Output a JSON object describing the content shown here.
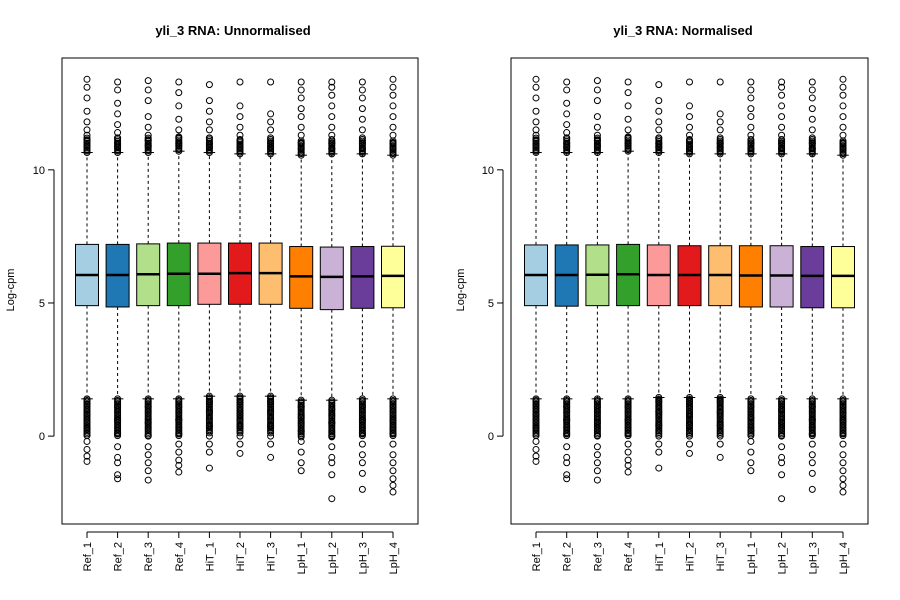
{
  "chart_data": [
    {
      "type": "box",
      "title": "yli_3 RNA: Unnormalised",
      "ylabel": "Log-cpm",
      "ylim": [
        -3.3,
        14.2
      ],
      "yticks": [
        0,
        5,
        10
      ],
      "categories": [
        "Ref_1",
        "Ref_2",
        "Ref_3",
        "Ref_4",
        "HiT_1",
        "HiT_2",
        "HiT_3",
        "LpH_1",
        "LpH_2",
        "LpH_3",
        "LpH_4"
      ],
      "colors": [
        "#a6cee3",
        "#1f78b4",
        "#b2df8a",
        "#33a02c",
        "#fb9a99",
        "#e31a1c",
        "#fdbf6f",
        "#ff7f00",
        "#cab2d6",
        "#6a3d9a",
        "#ffff99"
      ],
      "boxes": [
        {
          "q1": 4.9,
          "median": 6.05,
          "q3": 7.2,
          "whisker_low": 1.4,
          "whisker_high": 10.65,
          "outliers_high": [
            13.4,
            13.1,
            12.7,
            12.2,
            11.8,
            11.5,
            11.3,
            11.1,
            10.9
          ],
          "outliers_low": [
            1.2,
            0.8,
            0.3,
            -0.2,
            -0.5,
            -0.75,
            -0.95
          ]
        },
        {
          "q1": 4.85,
          "median": 6.05,
          "q3": 7.2,
          "whisker_low": 1.4,
          "whisker_high": 10.65,
          "outliers_high": [
            13.3,
            13.0,
            12.5,
            12.1,
            11.7,
            11.4,
            11.2,
            11.0,
            10.85
          ],
          "outliers_low": [
            1.1,
            0.6,
            0.1,
            -0.4,
            -0.8,
            -1.0,
            -1.45,
            -1.6
          ]
        },
        {
          "q1": 4.9,
          "median": 6.08,
          "q3": 7.22,
          "whisker_low": 1.4,
          "whisker_high": 10.65,
          "outliers_high": [
            13.35,
            13.0,
            12.6,
            12.0,
            11.6,
            11.3,
            11.1,
            10.9
          ],
          "outliers_low": [
            1.1,
            0.5,
            0.0,
            -0.4,
            -0.7,
            -1.0,
            -1.3,
            -1.65
          ]
        },
        {
          "q1": 4.9,
          "median": 6.1,
          "q3": 7.25,
          "whisker_low": 1.4,
          "whisker_high": 10.7,
          "outliers_high": [
            13.3,
            12.9,
            12.4,
            11.9,
            11.5,
            11.2,
            11.0,
            10.9
          ],
          "outliers_low": [
            1.1,
            0.6,
            0.1,
            -0.3,
            -0.6,
            -0.9,
            -1.1,
            -1.35
          ]
        },
        {
          "q1": 4.95,
          "median": 6.1,
          "q3": 7.25,
          "whisker_low": 1.5,
          "whisker_high": 10.65,
          "outliers_high": [
            13.2,
            12.6,
            12.2,
            11.8,
            11.5,
            11.2,
            11.0,
            10.85
          ],
          "outliers_low": [
            1.3,
            0.9,
            0.4,
            0.0,
            -0.3,
            -0.6,
            -1.2
          ]
        },
        {
          "q1": 4.95,
          "median": 6.12,
          "q3": 7.25,
          "whisker_low": 1.5,
          "whisker_high": 10.6,
          "outliers_high": [
            13.3,
            12.4,
            12.0,
            11.6,
            11.3,
            11.1,
            10.85
          ],
          "outliers_low": [
            1.3,
            0.8,
            0.4,
            0.0,
            -0.3,
            -0.65
          ]
        },
        {
          "q1": 4.95,
          "median": 6.12,
          "q3": 7.25,
          "whisker_low": 1.5,
          "whisker_high": 10.6,
          "outliers_high": [
            13.3,
            12.1,
            11.8,
            11.5,
            11.2,
            11.0,
            10.85
          ],
          "outliers_low": [
            1.3,
            0.9,
            0.4,
            0.0,
            -0.3,
            -0.8
          ]
        },
        {
          "q1": 4.8,
          "median": 6.0,
          "q3": 7.12,
          "whisker_low": 1.35,
          "whisker_high": 10.55,
          "outliers_high": [
            13.3,
            13.0,
            12.7,
            12.3,
            12.0,
            11.6,
            11.3,
            11.0,
            10.8
          ],
          "outliers_low": [
            1.1,
            0.7,
            0.2,
            -0.2,
            -0.6,
            -1.0,
            -1.3
          ]
        },
        {
          "q1": 4.75,
          "median": 5.98,
          "q3": 7.1,
          "whisker_low": 1.35,
          "whisker_high": 10.6,
          "outliers_high": [
            13.3,
            13.1,
            12.8,
            12.4,
            12.0,
            11.6,
            11.3,
            11.0,
            10.8
          ],
          "outliers_low": [
            1.0,
            0.5,
            0.0,
            -0.4,
            -0.8,
            -1.0,
            -1.45,
            -2.35
          ]
        },
        {
          "q1": 4.8,
          "median": 6.0,
          "q3": 7.12,
          "whisker_low": 1.4,
          "whisker_high": 10.6,
          "outliers_high": [
            13.3,
            13.0,
            12.7,
            12.3,
            11.9,
            11.5,
            11.2,
            11.0,
            10.8
          ],
          "outliers_low": [
            1.1,
            0.6,
            0.1,
            -0.3,
            -0.7,
            -1.0,
            -1.4,
            -2.0
          ]
        },
        {
          "q1": 4.82,
          "median": 6.02,
          "q3": 7.13,
          "whisker_low": 1.4,
          "whisker_high": 10.55,
          "outliers_high": [
            13.4,
            13.1,
            12.8,
            12.4,
            12.0,
            11.6,
            11.3,
            11.0,
            10.8
          ],
          "outliers_low": [
            1.1,
            0.6,
            0.1,
            -0.3,
            -0.7,
            -1.0,
            -1.3,
            -1.6,
            -1.85,
            -2.1
          ]
        }
      ]
    },
    {
      "type": "box",
      "title": "yli_3 RNA: Normalised",
      "ylabel": "Log-cpm",
      "ylim": [
        -3.3,
        14.2
      ],
      "yticks": [
        0,
        5,
        10
      ],
      "categories": [
        "Ref_1",
        "Ref_2",
        "Ref_3",
        "Ref_4",
        "HiT_1",
        "HiT_2",
        "HiT_3",
        "LpH_1",
        "LpH_2",
        "LpH_3",
        "LpH_4"
      ],
      "colors": [
        "#a6cee3",
        "#1f78b4",
        "#b2df8a",
        "#33a02c",
        "#fb9a99",
        "#e31a1c",
        "#fdbf6f",
        "#ff7f00",
        "#cab2d6",
        "#6a3d9a",
        "#ffff99"
      ],
      "boxes": [
        {
          "q1": 4.9,
          "median": 6.05,
          "q3": 7.18,
          "whisker_low": 1.4,
          "whisker_high": 10.65,
          "outliers_high": [
            13.4,
            13.1,
            12.7,
            12.2,
            11.8,
            11.5,
            11.3,
            11.1,
            10.9
          ],
          "outliers_low": [
            1.2,
            0.8,
            0.3,
            -0.2,
            -0.5,
            -0.75,
            -0.95
          ]
        },
        {
          "q1": 4.88,
          "median": 6.05,
          "q3": 7.18,
          "whisker_low": 1.4,
          "whisker_high": 10.65,
          "outliers_high": [
            13.3,
            13.0,
            12.5,
            12.1,
            11.7,
            11.4,
            11.2,
            11.0,
            10.85
          ],
          "outliers_low": [
            1.1,
            0.6,
            0.1,
            -0.4,
            -0.8,
            -1.0,
            -1.45,
            -1.6
          ]
        },
        {
          "q1": 4.9,
          "median": 6.06,
          "q3": 7.18,
          "whisker_low": 1.4,
          "whisker_high": 10.65,
          "outliers_high": [
            13.35,
            13.0,
            12.6,
            12.0,
            11.6,
            11.3,
            11.1,
            10.9
          ],
          "outliers_low": [
            1.1,
            0.5,
            0.0,
            -0.4,
            -0.7,
            -1.0,
            -1.3,
            -1.65
          ]
        },
        {
          "q1": 4.9,
          "median": 6.08,
          "q3": 7.2,
          "whisker_low": 1.4,
          "whisker_high": 10.7,
          "outliers_high": [
            13.3,
            12.9,
            12.4,
            11.9,
            11.5,
            11.2,
            11.0,
            10.9
          ],
          "outliers_low": [
            1.1,
            0.6,
            0.1,
            -0.3,
            -0.6,
            -0.9,
            -1.1,
            -1.35
          ]
        },
        {
          "q1": 4.9,
          "median": 6.05,
          "q3": 7.18,
          "whisker_low": 1.45,
          "whisker_high": 10.65,
          "outliers_high": [
            13.2,
            12.6,
            12.2,
            11.8,
            11.5,
            11.2,
            11.0,
            10.85
          ],
          "outliers_low": [
            1.3,
            0.9,
            0.4,
            0.0,
            -0.3,
            -0.6,
            -1.2
          ]
        },
        {
          "q1": 4.9,
          "median": 6.05,
          "q3": 7.15,
          "whisker_low": 1.45,
          "whisker_high": 10.6,
          "outliers_high": [
            13.3,
            12.4,
            12.0,
            11.6,
            11.3,
            11.1,
            10.85
          ],
          "outliers_low": [
            1.3,
            0.8,
            0.4,
            0.0,
            -0.3,
            -0.65
          ]
        },
        {
          "q1": 4.9,
          "median": 6.05,
          "q3": 7.15,
          "whisker_low": 1.45,
          "whisker_high": 10.6,
          "outliers_high": [
            13.3,
            12.1,
            11.8,
            11.5,
            11.2,
            11.0,
            10.85
          ],
          "outliers_low": [
            1.3,
            0.9,
            0.4,
            0.0,
            -0.3,
            -0.8
          ]
        },
        {
          "q1": 4.85,
          "median": 6.03,
          "q3": 7.15,
          "whisker_low": 1.4,
          "whisker_high": 10.6,
          "outliers_high": [
            13.3,
            13.0,
            12.7,
            12.3,
            12.0,
            11.6,
            11.3,
            11.0,
            10.8
          ],
          "outliers_low": [
            1.1,
            0.7,
            0.2,
            -0.2,
            -0.6,
            -1.0,
            -1.3
          ]
        },
        {
          "q1": 4.85,
          "median": 6.03,
          "q3": 7.15,
          "whisker_low": 1.4,
          "whisker_high": 10.6,
          "outliers_high": [
            13.3,
            13.1,
            12.8,
            12.4,
            12.0,
            11.6,
            11.3,
            11.0,
            10.8
          ],
          "outliers_low": [
            1.0,
            0.5,
            0.0,
            -0.4,
            -0.8,
            -1.0,
            -1.45,
            -2.35
          ]
        },
        {
          "q1": 4.82,
          "median": 6.02,
          "q3": 7.12,
          "whisker_low": 1.4,
          "whisker_high": 10.6,
          "outliers_high": [
            13.3,
            13.0,
            12.7,
            12.3,
            11.9,
            11.5,
            11.2,
            11.0,
            10.8
          ],
          "outliers_low": [
            1.1,
            0.6,
            0.1,
            -0.3,
            -0.7,
            -1.0,
            -1.4,
            -2.0
          ]
        },
        {
          "q1": 4.82,
          "median": 6.02,
          "q3": 7.12,
          "whisker_low": 1.4,
          "whisker_high": 10.55,
          "outliers_high": [
            13.4,
            13.1,
            12.8,
            12.4,
            12.0,
            11.6,
            11.3,
            11.0,
            10.8
          ],
          "outliers_low": [
            1.1,
            0.6,
            0.1,
            -0.3,
            -0.7,
            -1.0,
            -1.3,
            -1.6,
            -1.85,
            -2.1
          ]
        }
      ]
    }
  ]
}
